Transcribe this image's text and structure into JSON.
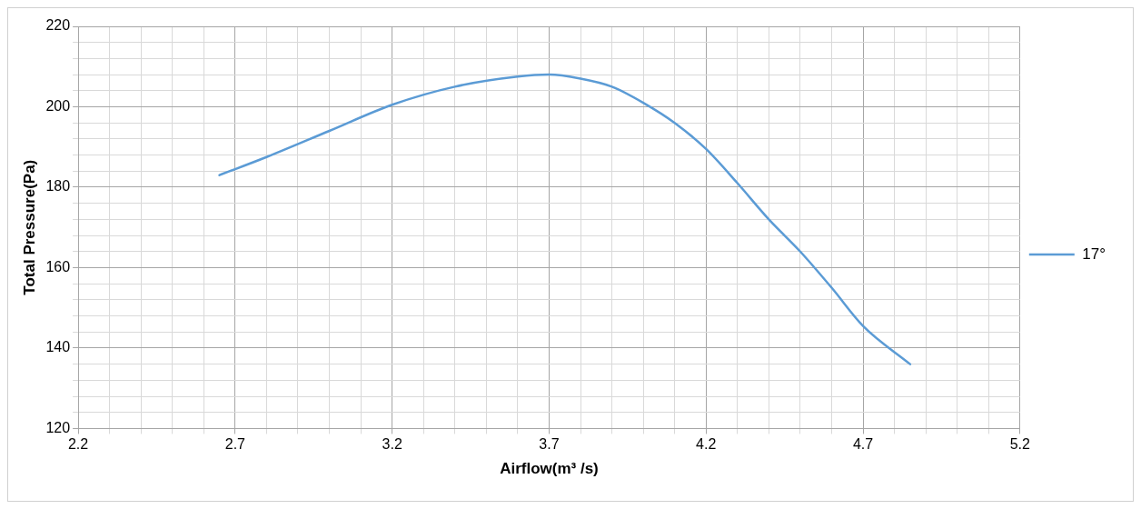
{
  "chart_data": {
    "type": "line",
    "xlabel": "Airflow(m³ /s)",
    "ylabel": "Total Pressure(Pa)",
    "x": [
      2.65,
      2.8,
      3.0,
      3.2,
      3.4,
      3.6,
      3.7,
      3.8,
      3.9,
      4.0,
      4.1,
      4.2,
      4.3,
      4.4,
      4.5,
      4.6,
      4.7,
      4.85
    ],
    "series": [
      {
        "name": "17°",
        "color": "#5b9bd5",
        "values": [
          183,
          187.5,
          194,
          200.5,
          205,
          207.5,
          208,
          207,
          205,
          201,
          196,
          189.5,
          181,
          172,
          164,
          155,
          145.5,
          136
        ]
      }
    ],
    "xlim": [
      2.2,
      5.2
    ],
    "ylim": [
      120,
      220
    ],
    "xticks": [
      2.2,
      {
        "value": 2.3,
        "label": null
      },
      {
        "value": 2.4,
        "label": null
      },
      {
        "value": 2.5,
        "label": null
      },
      {
        "value": 2.6,
        "label": null
      },
      2.7,
      {
        "value": 2.8,
        "label": null
      },
      {
        "value": 2.9,
        "label": null
      },
      {
        "value": 3.0,
        "label": null
      },
      {
        "value": 3.1,
        "label": null
      },
      3.2,
      {
        "value": 3.3,
        "label": null
      },
      {
        "value": 3.4,
        "label": null
      },
      {
        "value": 3.5,
        "label": null
      },
      {
        "value": 3.6,
        "label": null
      },
      3.7,
      {
        "value": 3.8,
        "label": null
      },
      {
        "value": 3.9,
        "label": null
      },
      {
        "value": 4.0,
        "label": null
      },
      {
        "value": 4.1,
        "label": null
      },
      4.2,
      {
        "value": 4.3,
        "label": null
      },
      {
        "value": 4.4,
        "label": null
      },
      {
        "value": 4.5,
        "label": null
      },
      {
        "value": 4.6,
        "label": null
      },
      4.7,
      {
        "value": 4.8,
        "label": null
      },
      {
        "value": 4.9,
        "label": null
      },
      {
        "value": 5.0,
        "label": null
      },
      {
        "value": 5.1,
        "label": null
      },
      5.2
    ],
    "yticks": [
      120,
      {
        "value": 124,
        "label": null
      },
      {
        "value": 128,
        "label": null
      },
      {
        "value": 132,
        "label": null
      },
      {
        "value": 136,
        "label": null
      },
      140,
      {
        "value": 144,
        "label": null
      },
      {
        "value": 148,
        "label": null
      },
      {
        "value": 152,
        "label": null
      },
      {
        "value": 156,
        "label": null
      },
      160,
      {
        "value": 164,
        "label": null
      },
      {
        "value": 168,
        "label": null
      },
      {
        "value": 172,
        "label": null
      },
      {
        "value": 176,
        "label": null
      },
      180,
      {
        "value": 184,
        "label": null
      },
      {
        "value": 188,
        "label": null
      },
      {
        "value": 192,
        "label": null
      },
      {
        "value": 196,
        "label": null
      },
      200,
      {
        "value": 204,
        "label": null
      },
      {
        "value": 208,
        "label": null
      },
      {
        "value": 212,
        "label": null
      },
      {
        "value": 216,
        "label": null
      },
      220
    ],
    "grid": true,
    "legend": "right",
    "marker": "none",
    "line_style": "solid"
  }
}
